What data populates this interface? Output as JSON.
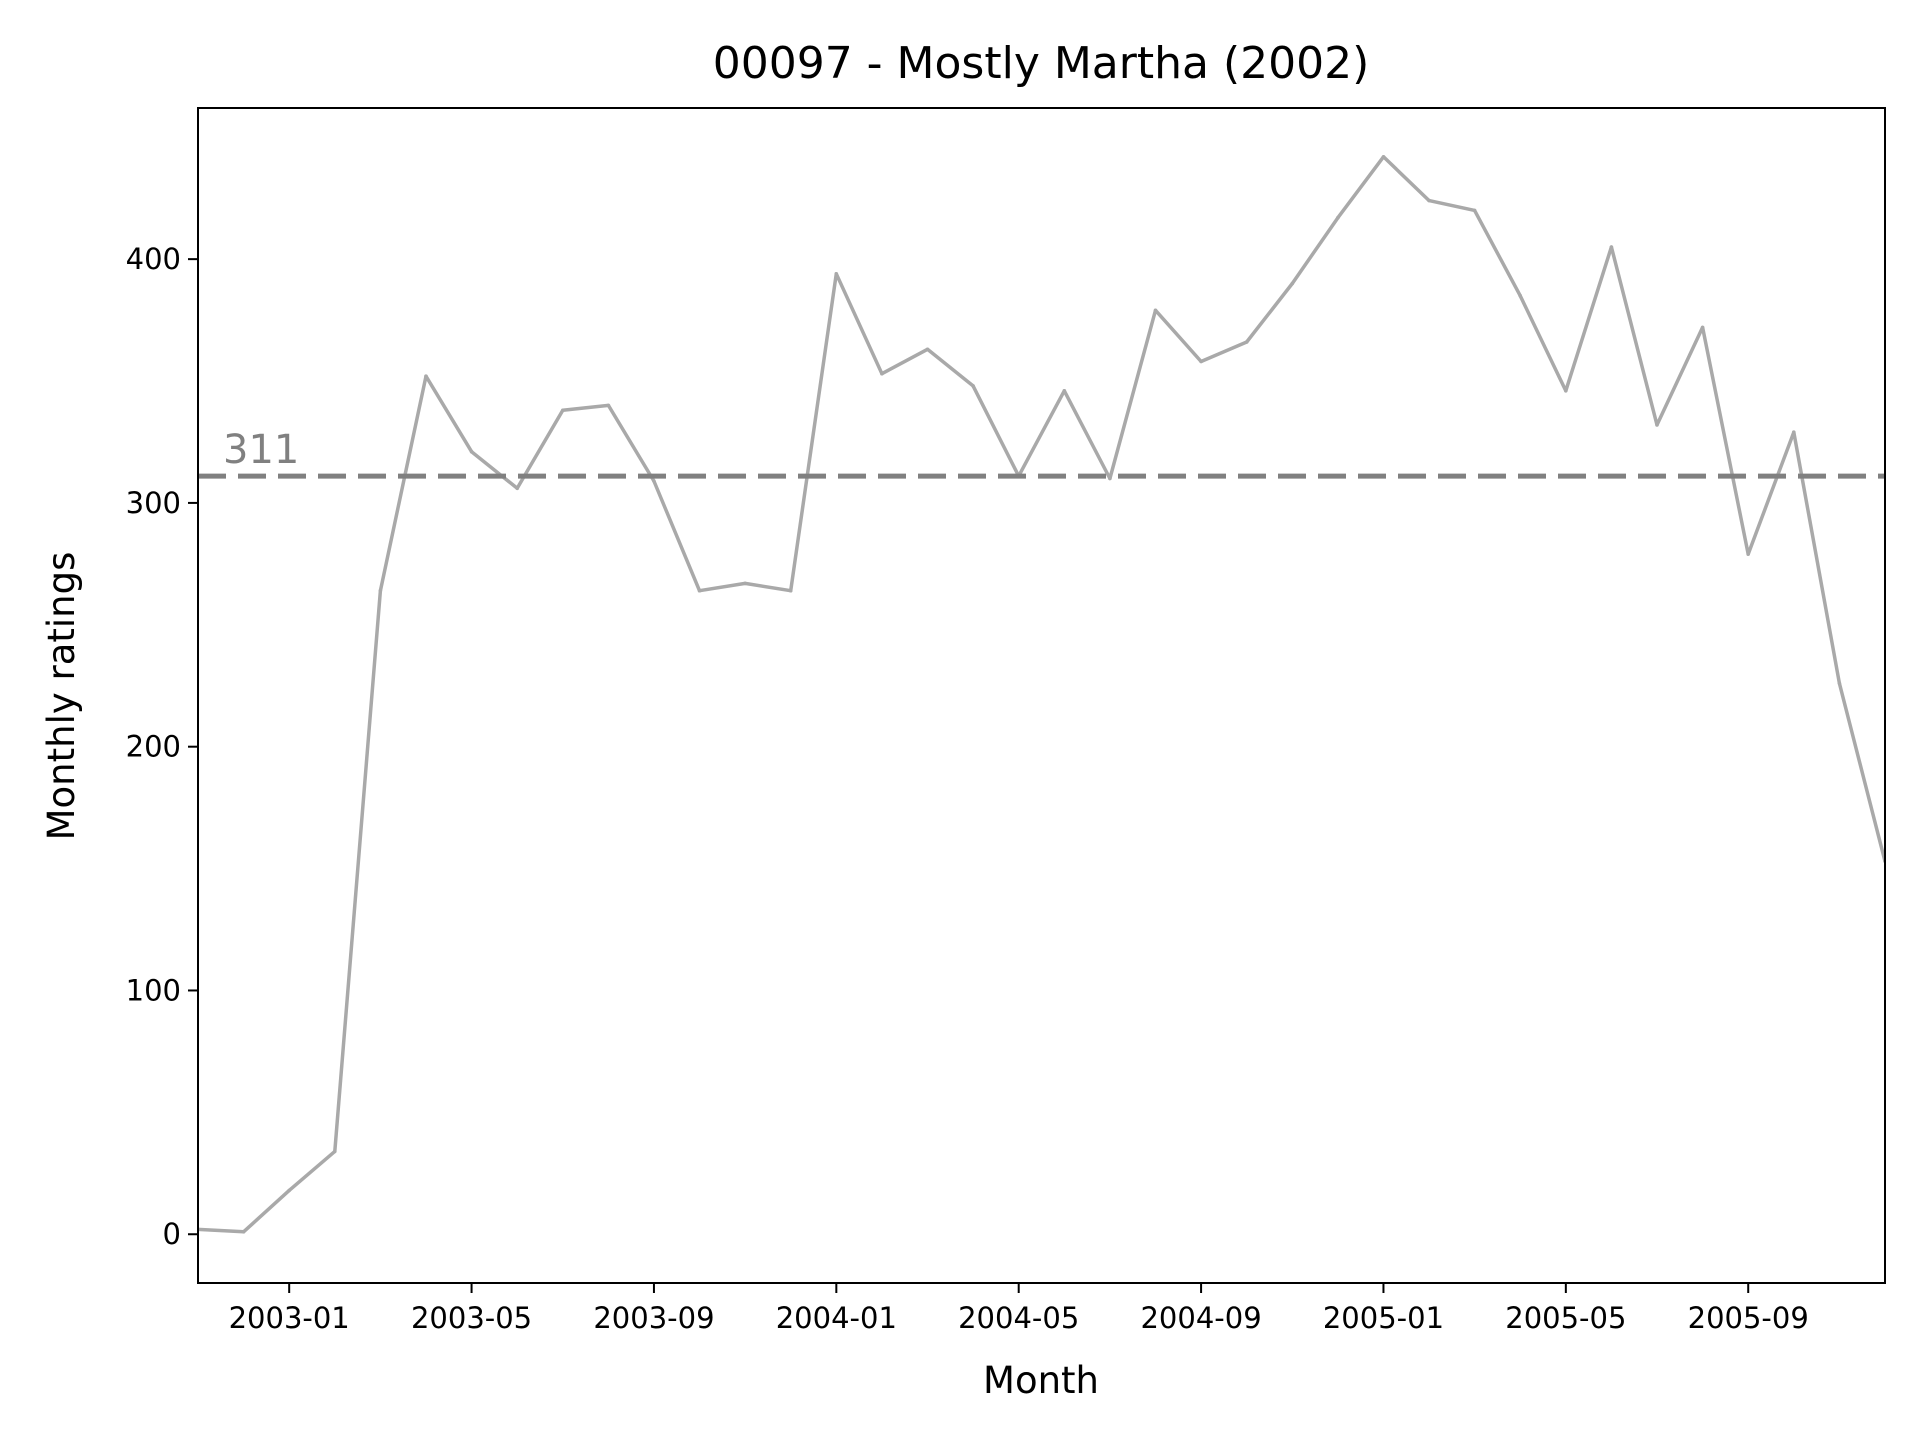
{
  "chart_data": {
    "type": "line",
    "title": "00097 - Mostly Martha (2002)",
    "xlabel": "Month",
    "ylabel": "Monthly ratings",
    "x_range": [
      "2002-11",
      "2005-12"
    ],
    "ylim": [
      -20,
      462
    ],
    "x_ticks": [
      "2003-01",
      "2003-05",
      "2003-09",
      "2004-01",
      "2004-05",
      "2004-09",
      "2005-01",
      "2005-05",
      "2005-09"
    ],
    "y_ticks": [
      0,
      100,
      200,
      300,
      400
    ],
    "grid": false,
    "legend": "none",
    "series": [
      {
        "color": "#a9a9a9",
        "x": [
          "2002-11",
          "2002-12",
          "2003-01",
          "2003-02",
          "2003-03",
          "2003-04",
          "2003-05",
          "2003-06",
          "2003-07",
          "2003-08",
          "2003-09",
          "2003-10",
          "2003-11",
          "2003-12",
          "2004-01",
          "2004-02",
          "2004-03",
          "2004-04",
          "2004-05",
          "2004-06",
          "2004-07",
          "2004-08",
          "2004-09",
          "2004-10",
          "2004-11",
          "2004-12",
          "2005-01",
          "2005-02",
          "2005-03",
          "2005-04",
          "2005-05",
          "2005-06",
          "2005-07",
          "2005-08",
          "2005-09",
          "2005-10",
          "2005-11",
          "2005-12"
        ],
        "values": [
          2,
          1,
          18,
          34,
          264,
          352,
          321,
          306,
          338,
          340,
          309,
          264,
          267,
          264,
          394,
          353,
          363,
          348,
          311,
          346,
          310,
          379,
          358,
          366,
          390,
          417,
          442,
          424,
          420,
          385,
          346,
          405,
          332,
          372,
          279,
          329,
          226,
          153
        ]
      }
    ],
    "reference_line": {
      "value": 311,
      "label": "311",
      "style": "dashed",
      "color": "#808080"
    }
  }
}
